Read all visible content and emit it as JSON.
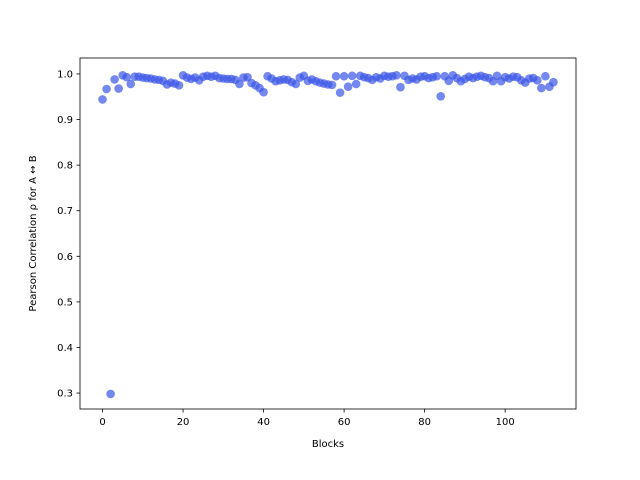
{
  "chart_data": {
    "type": "scatter",
    "xlabel": "Blocks",
    "ylabel": "Pearson Correlation ρ for A ↔ B",
    "xlim": [
      -5.6,
      117.6
    ],
    "ylim": [
      0.265,
      1.035
    ],
    "xticks": [
      0,
      20,
      40,
      60,
      80,
      100
    ],
    "yticks": [
      0.3,
      0.4,
      0.5,
      0.6,
      0.7,
      0.8,
      0.9,
      1.0
    ],
    "ytick_labels": [
      "0.3",
      "0.4",
      "0.5",
      "0.6",
      "0.7",
      "0.8",
      "0.9",
      "1.0"
    ],
    "grid": false,
    "marker_color": "#3b55e6",
    "x": [
      0,
      1,
      2,
      3,
      4,
      5,
      6,
      7,
      8,
      9,
      10,
      11,
      12,
      13,
      14,
      15,
      16,
      17,
      18,
      19,
      20,
      21,
      22,
      23,
      24,
      25,
      26,
      27,
      28,
      29,
      30,
      31,
      32,
      33,
      34,
      35,
      36,
      37,
      38,
      39,
      40,
      41,
      42,
      43,
      44,
      45,
      46,
      47,
      48,
      49,
      50,
      51,
      52,
      53,
      54,
      55,
      56,
      57,
      58,
      59,
      60,
      61,
      62,
      63,
      64,
      65,
      66,
      67,
      68,
      69,
      70,
      71,
      72,
      73,
      74,
      75,
      76,
      77,
      78,
      79,
      80,
      81,
      82,
      83,
      84,
      85,
      86,
      87,
      88,
      89,
      90,
      91,
      92,
      93,
      94,
      95,
      96,
      97,
      98,
      99,
      100,
      101,
      102,
      103,
      104,
      105,
      106,
      107,
      108,
      109,
      110,
      111,
      112
    ],
    "y": [
      0.944,
      0.967,
      0.298,
      0.988,
      0.968,
      0.997,
      0.993,
      0.978,
      0.994,
      0.994,
      0.992,
      0.991,
      0.99,
      0.988,
      0.987,
      0.985,
      0.977,
      0.981,
      0.979,
      0.975,
      0.997,
      0.992,
      0.989,
      0.992,
      0.986,
      0.994,
      0.996,
      0.994,
      0.996,
      0.991,
      0.99,
      0.989,
      0.989,
      0.987,
      0.978,
      0.992,
      0.993,
      0.98,
      0.975,
      0.969,
      0.96,
      0.995,
      0.99,
      0.984,
      0.986,
      0.988,
      0.987,
      0.982,
      0.978,
      0.992,
      0.996,
      0.985,
      0.988,
      0.984,
      0.981,
      0.979,
      0.977,
      0.976,
      0.995,
      0.959,
      0.995,
      0.972,
      0.996,
      0.978,
      0.996,
      0.993,
      0.991,
      0.987,
      0.993,
      0.99,
      0.996,
      0.994,
      0.995,
      0.997,
      0.971,
      0.996,
      0.987,
      0.99,
      0.988,
      0.994,
      0.995,
      0.991,
      0.993,
      0.995,
      0.951,
      0.995,
      0.985,
      0.997,
      0.991,
      0.984,
      0.989,
      0.994,
      0.991,
      0.994,
      0.996,
      0.993,
      0.991,
      0.984,
      0.996,
      0.984,
      0.993,
      0.99,
      0.994,
      0.993,
      0.986,
      0.981,
      0.99,
      0.991,
      0.986,
      0.969,
      0.995,
      0.972,
      0.982
    ]
  }
}
